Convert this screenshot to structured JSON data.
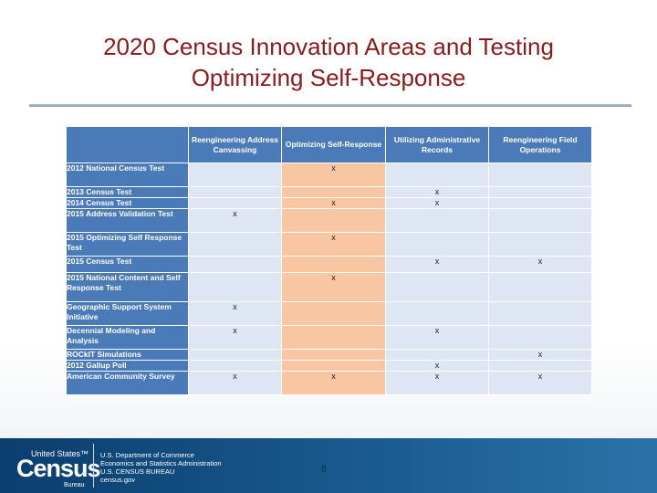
{
  "title": {
    "line1": "2020 Census Innovation Areas and Testing",
    "line2": "Optimizing Self-Response"
  },
  "table": {
    "columns": [
      "Reengineering Address Canvassing",
      "Optimizing Self-Response",
      "Utilizing Administrative Records",
      "Reengineering Field Operations"
    ],
    "rows": [
      {
        "label": "2012 National Census Test",
        "marks": [
          "",
          "x",
          "",
          ""
        ]
      },
      {
        "label": "2013 Census Test",
        "marks": [
          "",
          "",
          "x",
          ""
        ]
      },
      {
        "label": "2014 Census Test",
        "marks": [
          "",
          "x",
          "x",
          ""
        ]
      },
      {
        "label": "2015 Address Validation Test",
        "marks": [
          "x",
          "",
          "",
          ""
        ]
      },
      {
        "label": "2015 Optimizing Self Response Test",
        "marks": [
          "",
          "x",
          "",
          ""
        ]
      },
      {
        "label": "2015 Census Test",
        "marks": [
          "",
          "",
          "x",
          "x"
        ]
      },
      {
        "label": "2015 National Content and Self Response Test",
        "marks": [
          "",
          "x",
          "",
          ""
        ]
      },
      {
        "label": "Geographic Support System Initiative",
        "marks": [
          "x",
          "",
          "",
          ""
        ]
      },
      {
        "label": "Decennial Modeling and Analysis",
        "marks": [
          "x",
          "",
          "x",
          ""
        ]
      },
      {
        "label": "ROCkIT Simulations",
        "marks": [
          "",
          "",
          "",
          "x"
        ]
      },
      {
        "label": "2012 Gallup Poll",
        "marks": [
          "",
          "",
          "x",
          ""
        ]
      },
      {
        "label": "American Community Survey",
        "marks": [
          "x",
          "x",
          "x",
          "x"
        ]
      }
    ]
  },
  "footer": {
    "logo_us": "United States™",
    "logo_census": "Census",
    "logo_bureau": "Bureau",
    "agency_lines": [
      "U.S. Department of Commerce",
      "Economics and Statistics Administration",
      "U.S. CENSUS BUREAU",
      "census.gov"
    ],
    "page_number": "6"
  }
}
